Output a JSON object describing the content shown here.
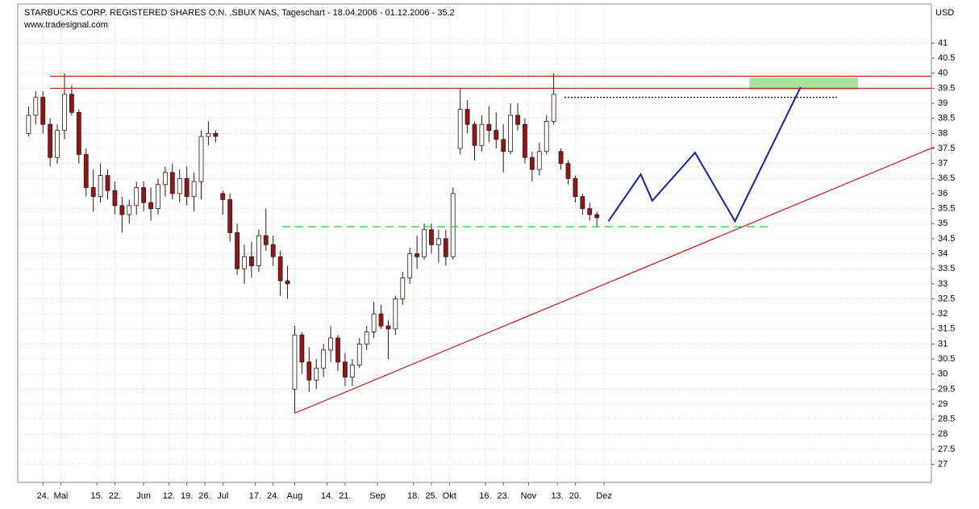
{
  "chart_data": {
    "type": "candlestick",
    "title": "STARBUCKS CORP. REGISTERED SHARES O.N. ,SBUX NAS, Tageschart - 18.04.2006 - 01.12.2006 - 35.2",
    "subtitle": "www.tradesignal.com",
    "y_axis_label": "USD",
    "xlim": [
      -3,
      251
    ],
    "ylim": [
      26.4,
      42.3
    ],
    "yticks": [
      27,
      27.5,
      28,
      28.5,
      29,
      29.5,
      30,
      30.5,
      31,
      31.5,
      32,
      32.5,
      33,
      33.5,
      34,
      34.5,
      35,
      35.5,
      36,
      36.5,
      37,
      37.5,
      38,
      38.5,
      39,
      39.5,
      40,
      40.5,
      41
    ],
    "xticks": [
      {
        "value": 4,
        "label": "24."
      },
      {
        "value": 9,
        "label": "Mai"
      },
      {
        "value": 19,
        "label": "15."
      },
      {
        "value": 24,
        "label": "22."
      },
      {
        "value": 32,
        "label": "Jun"
      },
      {
        "value": 39,
        "label": "12."
      },
      {
        "value": 44,
        "label": "19."
      },
      {
        "value": 49,
        "label": "26."
      },
      {
        "value": 54,
        "label": "Jul"
      },
      {
        "value": 63,
        "label": "17."
      },
      {
        "value": 68,
        "label": "24."
      },
      {
        "value": 74,
        "label": "Aug"
      },
      {
        "value": 83,
        "label": "14."
      },
      {
        "value": 88,
        "label": "21."
      },
      {
        "value": 97,
        "label": "Sep"
      },
      {
        "value": 107,
        "label": "18."
      },
      {
        "value": 112,
        "label": "25."
      },
      {
        "value": 117,
        "label": "Okt"
      },
      {
        "value": 127,
        "label": "16."
      },
      {
        "value": 132,
        "label": "23."
      },
      {
        "value": 139,
        "label": "Nov"
      },
      {
        "value": 147,
        "label": "13."
      },
      {
        "value": 152,
        "label": "20."
      },
      {
        "value": 160,
        "label": "Dez"
      }
    ],
    "grid": true,
    "up_color": "#ffffff",
    "down_color": "#8b1a1a",
    "outline_color": "#3a1010",
    "candles": {
      "x": [
        0,
        2,
        4,
        6,
        8,
        10,
        12,
        14,
        16,
        18,
        20,
        22,
        24,
        26,
        28,
        30,
        32,
        34,
        36,
        38,
        40,
        42,
        44,
        46,
        48,
        50,
        52,
        54,
        56,
        58,
        60,
        62,
        64,
        66,
        68,
        70,
        72,
        74,
        76,
        78,
        80,
        82,
        84,
        86,
        88,
        90,
        92,
        94,
        96,
        98,
        100,
        102,
        104,
        106,
        108,
        110,
        112,
        114,
        116,
        118,
        120,
        122,
        124,
        126,
        128,
        130,
        132,
        134,
        136,
        138,
        140,
        142,
        144,
        146,
        148,
        150,
        152,
        154,
        156,
        158
      ],
      "open": [
        38,
        38.6,
        39.2,
        38.3,
        37.2,
        38.1,
        39.3,
        38.7,
        37.3,
        36.2,
        35.9,
        36.6,
        36.1,
        35.6,
        35.3,
        35.6,
        36.2,
        35.7,
        35.5,
        36.3,
        36.7,
        36.0,
        36.5,
        35.9,
        36.4,
        37.9,
        38.0,
        36.0,
        35.8,
        34.7,
        33.5,
        33.9,
        33.6,
        34.6,
        34.3,
        33.9,
        33.1,
        29.5,
        31.3,
        30.4,
        29.8,
        30.2,
        30.8,
        31.2,
        30.4,
        29.9,
        30.3,
        31.0,
        31.4,
        32.0,
        31.6,
        31.5,
        32.5,
        33.2,
        34.0,
        33.9,
        34.8,
        34.3,
        34.5,
        33.9,
        37.5,
        38.8,
        38.3,
        37.6,
        38.3,
        38.1,
        37.8,
        37.4,
        38.6,
        38.3,
        37.2,
        36.8,
        37.4,
        38.4,
        37.4,
        37.0,
        36.5,
        35.9,
        35.5,
        35.3
      ],
      "high": [
        38.9,
        39.4,
        39.4,
        38.5,
        38.3,
        40.0,
        39.6,
        38.8,
        37.5,
        36.8,
        37.0,
        36.8,
        36.4,
        35.9,
        35.8,
        36.4,
        36.4,
        36.2,
        36.5,
        36.9,
        37.0,
        36.8,
        36.9,
        36.7,
        38.1,
        38.4,
        38.1,
        36.1,
        36.0,
        35.0,
        34.3,
        34.4,
        34.8,
        35.5,
        34.6,
        34.1,
        33.6,
        31.6,
        31.4,
        30.9,
        30.5,
        31.0,
        31.6,
        31.3,
        30.7,
        30.5,
        31.2,
        31.6,
        32.4,
        32.3,
        31.8,
        32.6,
        33.4,
        34.2,
        34.6,
        35.0,
        35.0,
        34.8,
        34.8,
        36.2,
        39.5,
        39.1,
        38.4,
        38.6,
        38.9,
        38.7,
        38.3,
        39.0,
        39.0,
        38.5,
        37.4,
        37.7,
        38.6,
        40.0,
        37.5,
        37.1,
        36.6,
        36.0,
        35.7,
        35.4
      ],
      "low": [
        37.9,
        38.3,
        38.0,
        36.9,
        37.0,
        37.8,
        38.6,
        37.0,
        35.9,
        35.4,
        35.7,
        35.8,
        35.3,
        34.7,
        35.0,
        35.3,
        35.4,
        35.1,
        35.3,
        35.9,
        35.8,
        35.7,
        35.6,
        35.4,
        35.8,
        37.6,
        37.7,
        35.3,
        34.4,
        33.3,
        33.0,
        33.2,
        33.4,
        34.1,
        33.6,
        32.6,
        32.5,
        28.7,
        30.0,
        29.4,
        29.5,
        29.9,
        30.4,
        30.1,
        29.6,
        29.6,
        30.2,
        30.8,
        31.2,
        31.5,
        30.5,
        31.3,
        32.3,
        33.0,
        33.5,
        33.8,
        34.0,
        33.7,
        33.6,
        33.8,
        37.3,
        38.0,
        37.1,
        37.4,
        37.7,
        37.5,
        36.7,
        37.3,
        38.1,
        37.0,
        36.4,
        36.6,
        37.3,
        38.3,
        36.8,
        36.3,
        35.7,
        35.3,
        35.1,
        34.9
      ],
      "close": [
        38.6,
        39.2,
        38.3,
        37.2,
        38.1,
        39.3,
        38.7,
        37.3,
        36.2,
        35.9,
        36.6,
        36.1,
        35.6,
        35.3,
        35.6,
        36.2,
        35.7,
        35.5,
        36.3,
        36.7,
        36.0,
        36.5,
        35.9,
        36.4,
        37.9,
        38.0,
        37.9,
        35.8,
        34.7,
        33.5,
        33.9,
        33.6,
        34.6,
        34.3,
        33.9,
        33.1,
        33.0,
        31.3,
        30.4,
        29.8,
        30.2,
        30.8,
        31.2,
        30.4,
        29.9,
        30.3,
        31.0,
        31.4,
        32.0,
        31.6,
        31.5,
        32.5,
        33.2,
        34.0,
        33.9,
        34.8,
        34.3,
        34.5,
        33.9,
        36.0,
        38.8,
        38.3,
        37.6,
        38.3,
        38.1,
        37.8,
        37.4,
        38.6,
        38.3,
        37.2,
        36.8,
        37.4,
        38.4,
        39.3,
        37.0,
        36.5,
        35.9,
        35.5,
        35.3,
        35.2
      ]
    },
    "annotations": {
      "lines": [
        {
          "x": [
            6,
            251
          ],
          "y": [
            39.9,
            39.9
          ],
          "color": "#cc1111",
          "dash": "none"
        },
        {
          "x": [
            6,
            251
          ],
          "y": [
            39.5,
            39.5
          ],
          "color": "#cc1111",
          "dash": "none"
        },
        {
          "x": [
            74,
            251.8
          ],
          "y": [
            28.7,
            37.55
          ],
          "color": "#cc1111",
          "dash": "none"
        },
        {
          "x": [
            70.5,
            206
          ],
          "y": [
            34.9,
            34.9
          ],
          "color": "#22cc22",
          "dash": "10 6"
        },
        {
          "x": [
            149,
            225
          ],
          "y": [
            39.2,
            39.2
          ],
          "color": "#000000",
          "dash": "2 2"
        }
      ],
      "projection": {
        "x": [
          161.2,
          170.2,
          173.4,
          185.3,
          196.4,
          214.6
        ],
        "y": [
          35.08,
          36.64,
          35.76,
          37.36,
          35.08,
          39.53
        ],
        "color": "#1122aa"
      },
      "target_zone": {
        "x": [
          200.4,
          230.6
        ],
        "y": [
          39.44,
          39.85
        ],
        "color": "#a6e3a0"
      }
    }
  }
}
